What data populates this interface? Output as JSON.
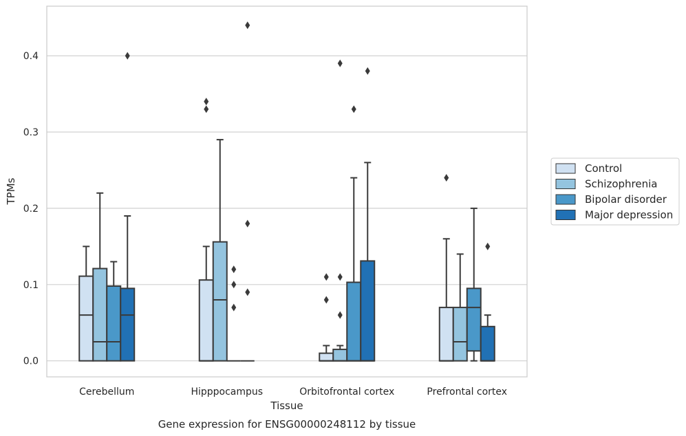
{
  "chart_data": {
    "type": "boxplot",
    "title": "",
    "xlabel": "Tissue",
    "ylabel": "TPMs",
    "caption": "Gene expression for ENSG00000248112 by tissue",
    "ylim": [
      -0.021,
      0.465
    ],
    "yticks": [
      {
        "value": 0.0,
        "label": "0.0"
      },
      {
        "value": 0.1,
        "label": "0.1"
      },
      {
        "value": 0.2,
        "label": "0.2"
      },
      {
        "value": 0.3,
        "label": "0.3"
      },
      {
        "value": 0.4,
        "label": "0.4"
      }
    ],
    "grid": "horizontal",
    "legend_position": "right",
    "categories": [
      "Cerebellum",
      "Hipppocampus",
      "Orbitofrontal cortex",
      "Prefrontal cortex"
    ],
    "series": [
      {
        "name": "Control",
        "color": "#d0e1f2",
        "boxes": [
          {
            "q1": 0.0,
            "median": 0.06,
            "q3": 0.111,
            "whisker_low": 0.0,
            "whisker_high": 0.15,
            "outliers": []
          },
          {
            "q1": 0.0,
            "median": 0.0,
            "q3": 0.106,
            "whisker_low": 0.0,
            "whisker_high": 0.15,
            "outliers": [
              0.34,
              0.33
            ]
          },
          {
            "q1": 0.0,
            "median": 0.0,
            "q3": 0.01,
            "whisker_low": 0.0,
            "whisker_high": 0.02,
            "outliers": [
              0.11,
              0.08
            ]
          },
          {
            "q1": 0.0,
            "median": 0.0,
            "q3": 0.07,
            "whisker_low": 0.0,
            "whisker_high": 0.16,
            "outliers": [
              0.24
            ]
          }
        ]
      },
      {
        "name": "Schizophrenia",
        "color": "#94c4df",
        "boxes": [
          {
            "q1": 0.0,
            "median": 0.025,
            "q3": 0.121,
            "whisker_low": 0.0,
            "whisker_high": 0.22,
            "outliers": []
          },
          {
            "q1": 0.0,
            "median": 0.08,
            "q3": 0.156,
            "whisker_low": 0.0,
            "whisker_high": 0.29,
            "outliers": []
          },
          {
            "q1": 0.0,
            "median": 0.0,
            "q3": 0.015,
            "whisker_low": 0.0,
            "whisker_high": 0.02,
            "outliers": [
              0.39,
              0.11,
              0.06
            ]
          },
          {
            "q1": 0.0,
            "median": 0.025,
            "q3": 0.07,
            "whisker_low": 0.0,
            "whisker_high": 0.14,
            "outliers": []
          }
        ]
      },
      {
        "name": "Bipolar disorder",
        "color": "#4a98c9",
        "boxes": [
          {
            "q1": 0.0,
            "median": 0.025,
            "q3": 0.098,
            "whisker_low": 0.0,
            "whisker_high": 0.13,
            "outliers": []
          },
          {
            "q1": 0.0,
            "median": 0.0,
            "q3": 0.0,
            "whisker_low": 0.0,
            "whisker_high": 0.0,
            "outliers": [
              0.12,
              0.1,
              0.07
            ]
          },
          {
            "q1": 0.0,
            "median": 0.0,
            "q3": 0.103,
            "whisker_low": 0.0,
            "whisker_high": 0.24,
            "outliers": [
              0.33
            ]
          },
          {
            "q1": 0.013,
            "median": 0.07,
            "q3": 0.095,
            "whisker_low": 0.0,
            "whisker_high": 0.2,
            "outliers": []
          }
        ]
      },
      {
        "name": "Major depression",
        "color": "#2171b5",
        "boxes": [
          {
            "q1": 0.0,
            "median": 0.06,
            "q3": 0.095,
            "whisker_low": 0.0,
            "whisker_high": 0.19,
            "outliers": [
              0.4
            ]
          },
          {
            "q1": 0.0,
            "median": 0.0,
            "q3": 0.0,
            "whisker_low": 0.0,
            "whisker_high": 0.0,
            "outliers": [
              0.44,
              0.18,
              0.09
            ]
          },
          {
            "q1": 0.0,
            "median": 0.0,
            "q3": 0.131,
            "whisker_low": 0.0,
            "whisker_high": 0.26,
            "outliers": [
              0.38
            ]
          },
          {
            "q1": 0.0,
            "median": 0.0,
            "q3": 0.045,
            "whisker_low": 0.0,
            "whisker_high": 0.06,
            "outliers": [
              0.15
            ]
          }
        ]
      }
    ]
  }
}
